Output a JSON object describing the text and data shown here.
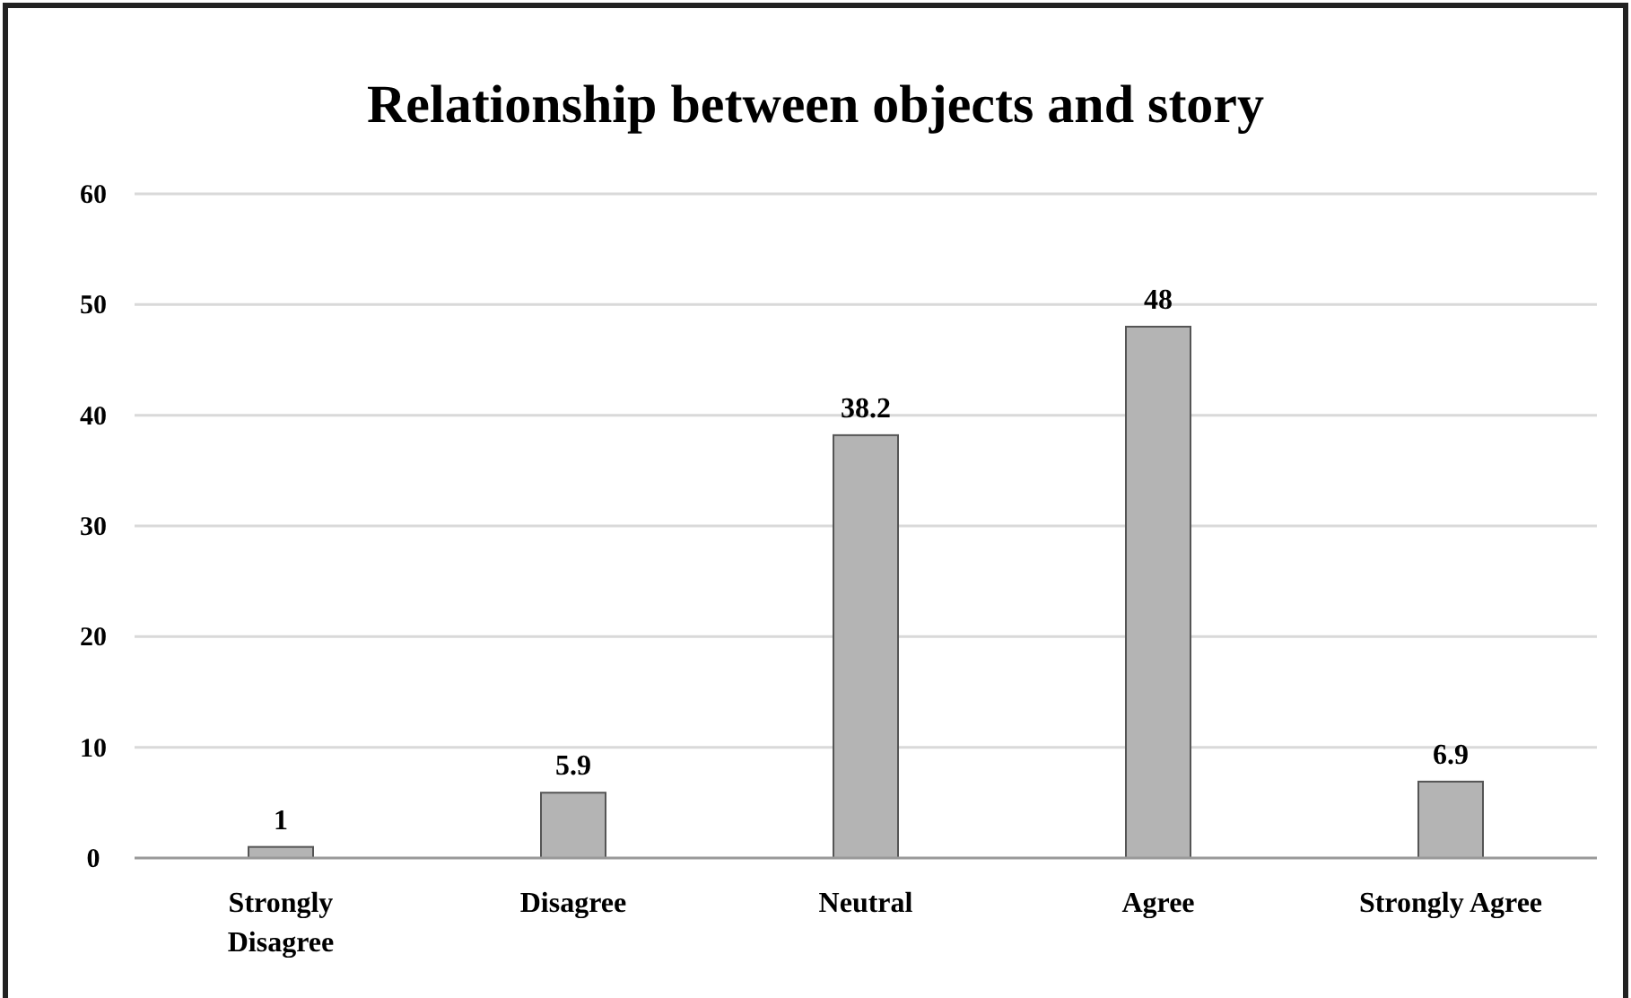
{
  "chart_data": {
    "type": "bar",
    "title": "Relationship between objects and story",
    "categories": [
      "Strongly Disagree",
      "Disagree",
      "Neutral",
      "Agree",
      "Strongly Agree"
    ],
    "values": [
      1,
      5.9,
      38.2,
      48,
      6.9
    ],
    "color": "#b4b4b4",
    "ylim": [
      0,
      60
    ],
    "yticks": [
      0,
      10,
      20,
      30,
      40,
      50,
      60
    ],
    "grid": "y",
    "data_labels": true
  }
}
